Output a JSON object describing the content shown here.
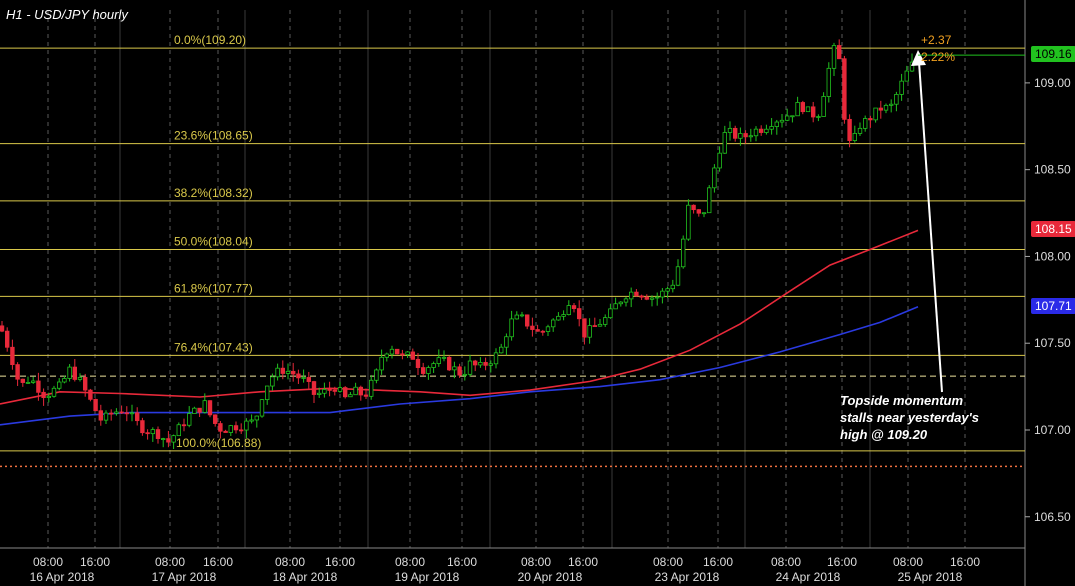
{
  "title": "H1 - USD/JPY hourly",
  "annotation": {
    "line1": "Topside momentum",
    "line2": "stalls near yesterday's",
    "line3": "high @ 109.20"
  },
  "change": {
    "points": "+2.37",
    "percent": "2.22%"
  },
  "price_tags": {
    "last": {
      "label": "109.16",
      "value": 109.16,
      "color": "#21c21f"
    },
    "ma_red": {
      "label": "108.15",
      "value": 108.15,
      "color": "#e8293a"
    },
    "ma_blue": {
      "label": "107.71",
      "value": 107.71,
      "color": "#2a2ae8"
    }
  },
  "colors": {
    "up": "#21c21f",
    "down": "#e8293a",
    "fib": "#d9c84a",
    "red_ma": "#e8293a",
    "blue_ma": "#2a3ae0",
    "grid": "#5a5a5a"
  },
  "chart_data": {
    "type": "candlestick",
    "title": "H1 - USD/JPY hourly",
    "ylim": [
      106.32,
      109.42
    ],
    "y_ticks": [
      106.5,
      107.0,
      107.5,
      108.0,
      108.5,
      109.0
    ],
    "y_tick_labels": [
      "106.50",
      "107.00",
      "107.50",
      "108.00",
      "108.50",
      "109.00"
    ],
    "x_time_labels": [
      "08:00",
      "16:00",
      "08:00",
      "16:00",
      "08:00",
      "16:00",
      "08:00",
      "16:00",
      "08:00",
      "16:00",
      "08:00",
      "16:00",
      "08:00",
      "16:00",
      "08:00",
      "16:00"
    ],
    "x_date_labels": [
      "16 Apr 2018",
      "17 Apr 2018",
      "18 Apr 2018",
      "19 Apr 2018",
      "20 Apr 2018",
      "23 Apr 2018",
      "24 Apr 2018",
      "25 Apr 2018"
    ],
    "fib_levels": [
      {
        "label": "0.0%(109.20)",
        "value": 109.2
      },
      {
        "label": "23.6%(108.65)",
        "value": 108.65
      },
      {
        "label": "38.2%(108.32)",
        "value": 108.32
      },
      {
        "label": "50.0%(108.04)",
        "value": 108.04
      },
      {
        "label": "61.8%(107.77)",
        "value": 107.77
      },
      {
        "label": "76.4%(107.43)",
        "value": 107.43
      },
      {
        "label": "100.0%(106.88)",
        "value": 106.88
      }
    ],
    "dashed_level": 107.31,
    "dotted_level": 106.79,
    "close_path": [
      [
        0,
        107.6
      ],
      [
        10,
        107.45
      ],
      [
        20,
        107.25
      ],
      [
        30,
        107.3
      ],
      [
        45,
        107.2
      ],
      [
        60,
        107.25
      ],
      [
        70,
        107.35
      ],
      [
        80,
        107.28
      ],
      [
        92,
        107.15
      ],
      [
        102,
        107.05
      ],
      [
        112,
        107.1
      ],
      [
        125,
        107.12
      ],
      [
        135,
        107.05
      ],
      [
        145,
        107.0
      ],
      [
        158,
        106.98
      ],
      [
        168,
        106.93
      ],
      [
        178,
        107.0
      ],
      [
        188,
        107.08
      ],
      [
        198,
        107.12
      ],
      [
        205,
        107.15
      ],
      [
        213,
        107.05
      ],
      [
        222,
        107.0
      ],
      [
        232,
        107.02
      ],
      [
        242,
        107.03
      ],
      [
        255,
        107.05
      ],
      [
        262,
        107.2
      ],
      [
        270,
        107.3
      ],
      [
        282,
        107.35
      ],
      [
        292,
        107.33
      ],
      [
        305,
        107.28
      ],
      [
        315,
        107.2
      ],
      [
        325,
        107.22
      ],
      [
        335,
        107.25
      ],
      [
        345,
        107.18
      ],
      [
        355,
        107.22
      ],
      [
        365,
        107.2
      ],
      [
        375,
        107.3
      ],
      [
        383,
        107.45
      ],
      [
        392,
        107.48
      ],
      [
        402,
        107.42
      ],
      [
        412,
        107.43
      ],
      [
        422,
        107.35
      ],
      [
        432,
        107.38
      ],
      [
        442,
        107.4
      ],
      [
        452,
        107.36
      ],
      [
        462,
        107.32
      ],
      [
        470,
        107.38
      ],
      [
        480,
        107.36
      ],
      [
        490,
        107.4
      ],
      [
        500,
        107.45
      ],
      [
        510,
        107.62
      ],
      [
        520,
        107.65
      ],
      [
        530,
        107.6
      ],
      [
        540,
        107.55
      ],
      [
        550,
        107.62
      ],
      [
        560,
        107.65
      ],
      [
        568,
        107.75
      ],
      [
        575,
        107.72
      ],
      [
        583,
        107.55
      ],
      [
        592,
        107.58
      ],
      [
        600,
        107.62
      ],
      [
        608,
        107.65
      ],
      [
        616,
        107.72
      ],
      [
        625,
        107.78
      ],
      [
        635,
        107.8
      ],
      [
        645,
        107.78
      ],
      [
        655,
        107.76
      ],
      [
        665,
        107.8
      ],
      [
        673,
        107.85
      ],
      [
        680,
        107.98
      ],
      [
        688,
        108.28
      ],
      [
        695,
        108.25
      ],
      [
        702,
        108.22
      ],
      [
        710,
        108.4
      ],
      [
        718,
        108.6
      ],
      [
        726,
        108.72
      ],
      [
        734,
        108.7
      ],
      [
        742,
        108.68
      ],
      [
        752,
        108.72
      ],
      [
        762,
        108.74
      ],
      [
        772,
        108.78
      ],
      [
        782,
        108.8
      ],
      [
        792,
        108.83
      ],
      [
        800,
        108.88
      ],
      [
        810,
        108.82
      ],
      [
        818,
        108.82
      ],
      [
        826,
        109.0
      ],
      [
        833,
        109.2
      ],
      [
        840,
        109.12
      ],
      [
        846,
        108.7
      ],
      [
        852,
        108.62
      ],
      [
        858,
        108.75
      ],
      [
        866,
        108.78
      ],
      [
        874,
        108.82
      ],
      [
        882,
        108.86
      ],
      [
        890,
        108.85
      ],
      [
        898,
        108.95
      ],
      [
        906,
        109.05
      ],
      [
        914,
        109.12
      ],
      [
        918,
        109.16
      ]
    ],
    "red_ma": [
      [
        0,
        107.15
      ],
      [
        60,
        107.22
      ],
      [
        120,
        107.21
      ],
      [
        200,
        107.19
      ],
      [
        260,
        107.22
      ],
      [
        330,
        107.24
      ],
      [
        420,
        107.22
      ],
      [
        470,
        107.2
      ],
      [
        530,
        107.23
      ],
      [
        590,
        107.28
      ],
      [
        640,
        107.35
      ],
      [
        690,
        107.46
      ],
      [
        740,
        107.61
      ],
      [
        790,
        107.8
      ],
      [
        830,
        107.95
      ],
      [
        870,
        108.04
      ],
      [
        918,
        108.15
      ]
    ],
    "blue_ma": [
      [
        0,
        107.03
      ],
      [
        70,
        107.08
      ],
      [
        130,
        107.1
      ],
      [
        200,
        107.1
      ],
      [
        260,
        107.1
      ],
      [
        330,
        107.1
      ],
      [
        400,
        107.15
      ],
      [
        470,
        107.18
      ],
      [
        530,
        107.22
      ],
      [
        600,
        107.25
      ],
      [
        660,
        107.29
      ],
      [
        720,
        107.36
      ],
      [
        780,
        107.45
      ],
      [
        840,
        107.55
      ],
      [
        880,
        107.62
      ],
      [
        918,
        107.71
      ]
    ]
  }
}
